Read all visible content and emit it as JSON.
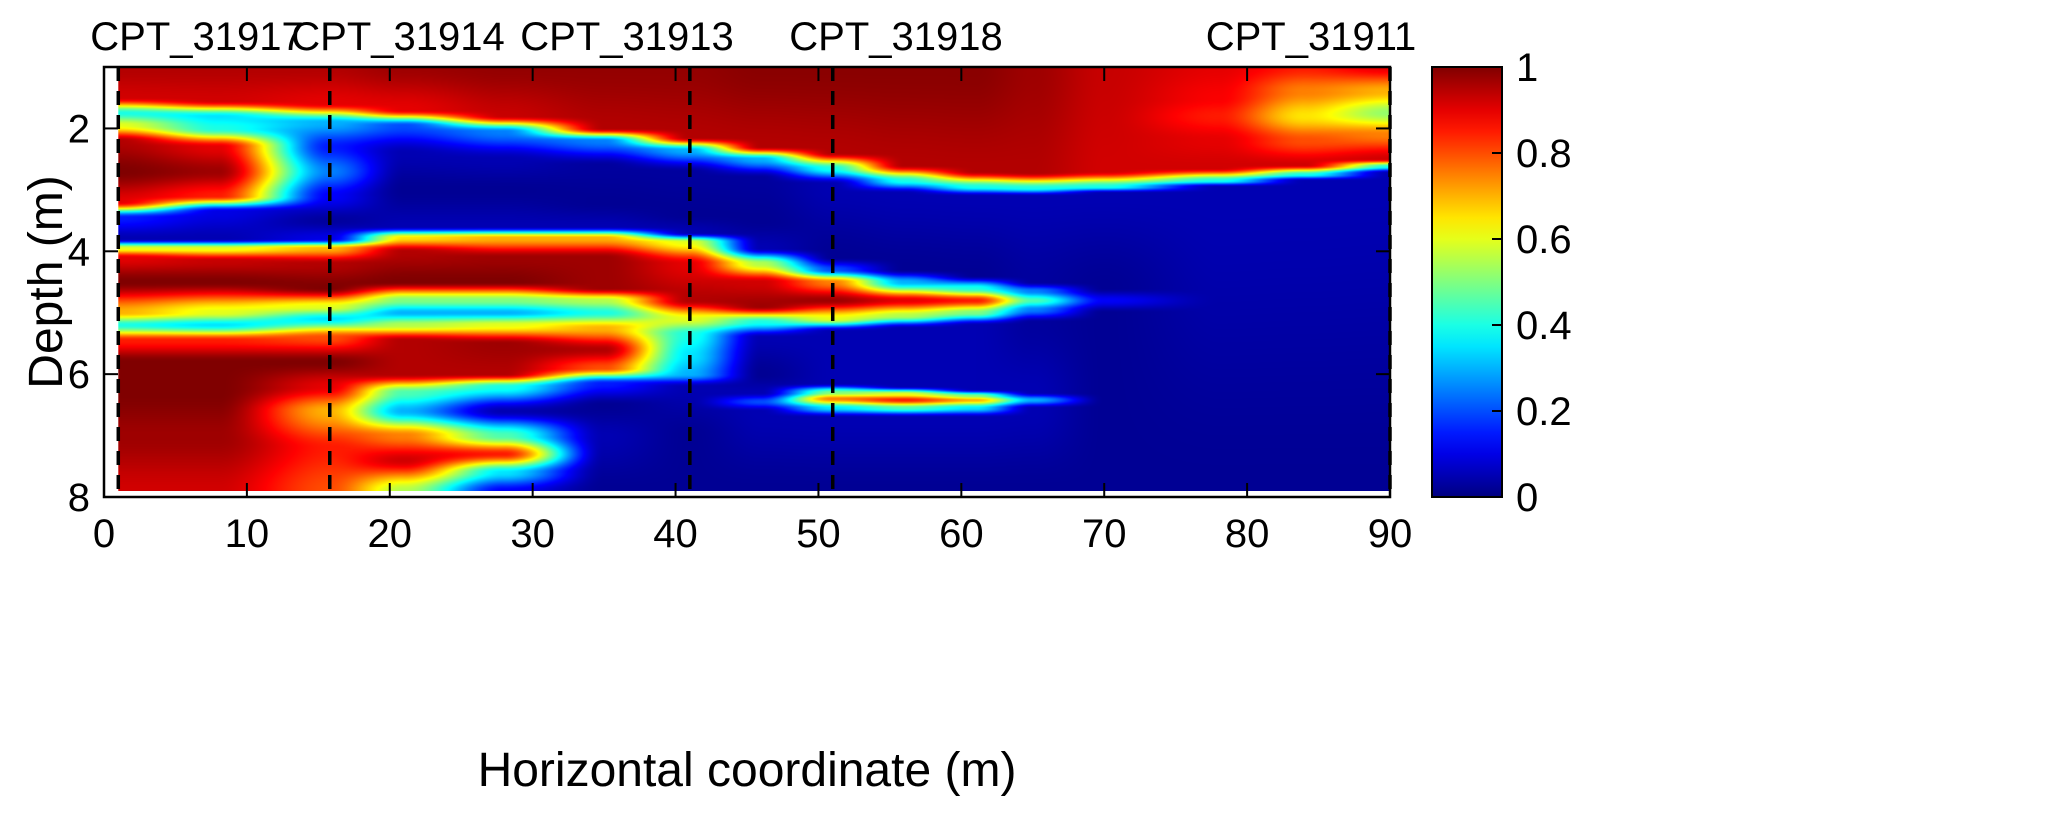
{
  "chart_data": {
    "type": "heatmap",
    "title": "",
    "xlabel": "Horizontal coordinate (m)",
    "ylabel": "Depth (m)",
    "xlim": [
      0,
      90
    ],
    "ylim": [
      8,
      1
    ],
    "data_extent": {
      "x": [
        1,
        90
      ],
      "y": [
        1,
        7.9
      ]
    },
    "x_ticks": [
      0,
      10,
      20,
      30,
      40,
      50,
      60,
      70,
      80,
      90
    ],
    "y_ticks": [
      2,
      4,
      6,
      8
    ],
    "colormap": "jet",
    "colorbar": {
      "range": [
        0,
        1
      ],
      "ticks": [
        0,
        0.2,
        0.4,
        0.6,
        0.8,
        1
      ],
      "tick_labels": [
        "0",
        "0.2",
        "0.4",
        "0.6",
        "0.8",
        "1"
      ]
    },
    "cpt_lines": [
      {
        "name": "CPT_31917",
        "x": 1
      },
      {
        "name": "CPT_31914",
        "x": 15.8
      },
      {
        "name": "CPT_31913",
        "x": 41
      },
      {
        "name": "CPT_31918",
        "x": 51
      },
      {
        "name": "CPT_31911",
        "x": 90
      }
    ],
    "profiles": [
      {
        "x": 1,
        "points": [
          [
            1,
            0.95
          ],
          [
            1.5,
            0.92
          ],
          [
            1.75,
            0.4
          ],
          [
            1.95,
            0.6
          ],
          [
            2.2,
            0.95
          ],
          [
            2.7,
            1
          ],
          [
            3.2,
            0.9
          ],
          [
            3.45,
            0.15
          ],
          [
            3.8,
            0.05
          ],
          [
            3.95,
            0.6
          ],
          [
            4.1,
            0.9
          ],
          [
            4.5,
            1
          ],
          [
            5.0,
            0.7
          ],
          [
            5.2,
            0.4
          ],
          [
            5.45,
            0.85
          ],
          [
            5.8,
            1
          ],
          [
            6.3,
            1
          ],
          [
            7.0,
            0.97
          ],
          [
            7.9,
            0.92
          ]
        ]
      },
      {
        "x": 8,
        "points": [
          [
            1,
            0.95
          ],
          [
            1.55,
            0.92
          ],
          [
            1.8,
            0.35
          ],
          [
            2.0,
            0.4
          ],
          [
            2.3,
            0.9
          ],
          [
            2.7,
            0.97
          ],
          [
            3.1,
            0.85
          ],
          [
            3.35,
            0.1
          ],
          [
            3.8,
            0.05
          ],
          [
            3.95,
            0.6
          ],
          [
            4.15,
            0.93
          ],
          [
            4.5,
            1
          ],
          [
            5.0,
            0.6
          ],
          [
            5.2,
            0.35
          ],
          [
            5.45,
            0.85
          ],
          [
            5.8,
            1
          ],
          [
            6.3,
            1
          ],
          [
            7.0,
            0.97
          ],
          [
            7.9,
            0.92
          ]
        ]
      },
      {
        "x": 15.8,
        "points": [
          [
            1,
            0.95
          ],
          [
            1.6,
            0.9
          ],
          [
            1.9,
            0.3
          ],
          [
            2.3,
            0.15
          ],
          [
            2.7,
            0.25
          ],
          [
            3.1,
            0.12
          ],
          [
            3.5,
            0.03
          ],
          [
            3.8,
            0.1
          ],
          [
            3.95,
            0.7
          ],
          [
            4.2,
            0.95
          ],
          [
            4.6,
            1
          ],
          [
            4.9,
            0.6
          ],
          [
            5.1,
            0.35
          ],
          [
            5.4,
            0.8
          ],
          [
            5.8,
            1
          ],
          [
            6.2,
            0.9
          ],
          [
            6.6,
            0.7
          ],
          [
            7.2,
            0.85
          ],
          [
            7.9,
            0.8
          ]
        ]
      },
      {
        "x": 21,
        "points": [
          [
            1,
            0.97
          ],
          [
            1.7,
            0.9
          ],
          [
            1.95,
            0.2
          ],
          [
            2.4,
            0.05
          ],
          [
            3.0,
            0.02
          ],
          [
            3.6,
            0.05
          ],
          [
            3.78,
            0.65
          ],
          [
            4.0,
            0.95
          ],
          [
            4.5,
            1
          ],
          [
            4.8,
            0.5
          ],
          [
            5.0,
            0.3
          ],
          [
            5.2,
            0.55
          ],
          [
            5.45,
            0.95
          ],
          [
            6.0,
            0.95
          ],
          [
            6.3,
            0.45
          ],
          [
            6.6,
            0.3
          ],
          [
            7.0,
            0.75
          ],
          [
            7.4,
            0.92
          ],
          [
            7.9,
            0.55
          ]
        ]
      },
      {
        "x": 28,
        "points": [
          [
            1,
            0.98
          ],
          [
            1.8,
            0.93
          ],
          [
            2.05,
            0.25
          ],
          [
            2.5,
            0.05
          ],
          [
            3.0,
            0.02
          ],
          [
            3.6,
            0.05
          ],
          [
            3.78,
            0.7
          ],
          [
            4.1,
            0.97
          ],
          [
            4.5,
            1
          ],
          [
            4.8,
            0.5
          ],
          [
            5.0,
            0.3
          ],
          [
            5.2,
            0.6
          ],
          [
            5.5,
            0.97
          ],
          [
            6.0,
            0.95
          ],
          [
            6.2,
            0.4
          ],
          [
            6.6,
            0.05
          ],
          [
            7.0,
            0.45
          ],
          [
            7.3,
            0.85
          ],
          [
            7.6,
            0.35
          ],
          [
            7.9,
            0.12
          ]
        ]
      },
      {
        "x": 35,
        "points": [
          [
            1,
            0.98
          ],
          [
            2.0,
            0.95
          ],
          [
            2.2,
            0.25
          ],
          [
            2.6,
            0.03
          ],
          [
            3.2,
            0.02
          ],
          [
            3.6,
            0.05
          ],
          [
            3.78,
            0.7
          ],
          [
            4.1,
            0.97
          ],
          [
            4.6,
            0.97
          ],
          [
            4.8,
            0.55
          ],
          [
            5.0,
            0.4
          ],
          [
            5.25,
            0.7
          ],
          [
            5.6,
            0.95
          ],
          [
            5.9,
            0.8
          ],
          [
            6.15,
            0.15
          ],
          [
            6.5,
            0.02
          ],
          [
            7.0,
            0.05
          ],
          [
            7.9,
            0.02
          ]
        ]
      },
      {
        "x": 41,
        "points": [
          [
            1,
            0.98
          ],
          [
            2.15,
            0.95
          ],
          [
            2.35,
            0.3
          ],
          [
            2.7,
            0.03
          ],
          [
            3.4,
            0.02
          ],
          [
            3.7,
            0.05
          ],
          [
            3.85,
            0.6
          ],
          [
            4.2,
            0.9
          ],
          [
            4.8,
            0.95
          ],
          [
            5.1,
            0.6
          ],
          [
            5.35,
            0.4
          ],
          [
            5.7,
            0.35
          ],
          [
            6.0,
            0.3
          ],
          [
            6.2,
            0.05
          ],
          [
            7.0,
            0.02
          ],
          [
            7.9,
            0.02
          ]
        ]
      },
      {
        "x": 46,
        "points": [
          [
            1,
            0.99
          ],
          [
            2.3,
            0.95
          ],
          [
            2.5,
            0.3
          ],
          [
            2.8,
            0.03
          ],
          [
            3.5,
            0.02
          ],
          [
            3.95,
            0.05
          ],
          [
            4.2,
            0.55
          ],
          [
            4.5,
            0.92
          ],
          [
            4.9,
            0.97
          ],
          [
            5.15,
            0.4
          ],
          [
            5.4,
            0.05
          ],
          [
            6.0,
            0.02
          ],
          [
            6.3,
            0.05
          ],
          [
            6.45,
            0.2
          ],
          [
            6.6,
            0.05
          ],
          [
            7.9,
            0.02
          ]
        ]
      },
      {
        "x": 51,
        "points": [
          [
            1,
            0.99
          ],
          [
            2.4,
            0.95
          ],
          [
            2.65,
            0.4
          ],
          [
            2.9,
            0.05
          ],
          [
            4.1,
            0.02
          ],
          [
            4.3,
            0.2
          ],
          [
            4.5,
            0.75
          ],
          [
            4.8,
            0.97
          ],
          [
            5.1,
            0.6
          ],
          [
            5.3,
            0.05
          ],
          [
            6.15,
            0.05
          ],
          [
            6.3,
            0.5
          ],
          [
            6.4,
            0.75
          ],
          [
            6.55,
            0.35
          ],
          [
            6.7,
            0.05
          ],
          [
            7.9,
            0.02
          ]
        ]
      },
      {
        "x": 56,
        "points": [
          [
            1,
            0.99
          ],
          [
            2.6,
            0.95
          ],
          [
            2.85,
            0.4
          ],
          [
            3.05,
            0.05
          ],
          [
            4.3,
            0.02
          ],
          [
            4.5,
            0.3
          ],
          [
            4.8,
            0.9
          ],
          [
            5.05,
            0.55
          ],
          [
            5.25,
            0.05
          ],
          [
            6.2,
            0.05
          ],
          [
            6.32,
            0.6
          ],
          [
            6.42,
            0.85
          ],
          [
            6.55,
            0.45
          ],
          [
            6.7,
            0.05
          ],
          [
            7.9,
            0.02
          ]
        ]
      },
      {
        "x": 61,
        "points": [
          [
            1,
            0.99
          ],
          [
            2.7,
            0.95
          ],
          [
            2.95,
            0.4
          ],
          [
            3.1,
            0.05
          ],
          [
            4.4,
            0.02
          ],
          [
            4.6,
            0.4
          ],
          [
            4.8,
            0.85
          ],
          [
            5.0,
            0.5
          ],
          [
            5.2,
            0.05
          ],
          [
            6.25,
            0.05
          ],
          [
            6.35,
            0.5
          ],
          [
            6.42,
            0.7
          ],
          [
            6.55,
            0.35
          ],
          [
            6.7,
            0.05
          ],
          [
            7.9,
            0.02
          ]
        ]
      },
      {
        "x": 65,
        "points": [
          [
            1,
            0.97
          ],
          [
            2.72,
            0.95
          ],
          [
            2.97,
            0.4
          ],
          [
            3.1,
            0.05
          ],
          [
            4.5,
            0.03
          ],
          [
            4.65,
            0.25
          ],
          [
            4.8,
            0.45
          ],
          [
            4.95,
            0.25
          ],
          [
            5.15,
            0.03
          ],
          [
            6.3,
            0.05
          ],
          [
            6.42,
            0.3
          ],
          [
            6.55,
            0.05
          ],
          [
            7.9,
            0.02
          ]
        ]
      },
      {
        "x": 70,
        "points": [
          [
            1,
            0.93
          ],
          [
            2.7,
            0.92
          ],
          [
            2.95,
            0.4
          ],
          [
            3.05,
            0.05
          ],
          [
            4.6,
            0.02
          ],
          [
            4.8,
            0.12
          ],
          [
            5.0,
            0.02
          ],
          [
            7.9,
            0.02
          ]
        ]
      },
      {
        "x": 78,
        "points": [
          [
            1,
            0.9
          ],
          [
            1.5,
            0.88
          ],
          [
            1.8,
            0.85
          ],
          [
            2.2,
            0.9
          ],
          [
            2.65,
            0.92
          ],
          [
            2.85,
            0.4
          ],
          [
            2.95,
            0.05
          ],
          [
            7.9,
            0.02
          ]
        ]
      },
      {
        "x": 84,
        "points": [
          [
            1,
            0.85
          ],
          [
            1.4,
            0.75
          ],
          [
            1.8,
            0.65
          ],
          [
            2.2,
            0.8
          ],
          [
            2.6,
            0.92
          ],
          [
            2.75,
            0.4
          ],
          [
            2.85,
            0.05
          ],
          [
            7.9,
            0.02
          ]
        ]
      },
      {
        "x": 90,
        "points": [
          [
            1,
            0.9
          ],
          [
            1.4,
            0.7
          ],
          [
            1.75,
            0.52
          ],
          [
            2.1,
            0.75
          ],
          [
            2.5,
            0.92
          ],
          [
            2.62,
            0.4
          ],
          [
            2.72,
            0.05
          ],
          [
            7.9,
            0.02
          ]
        ]
      }
    ]
  }
}
